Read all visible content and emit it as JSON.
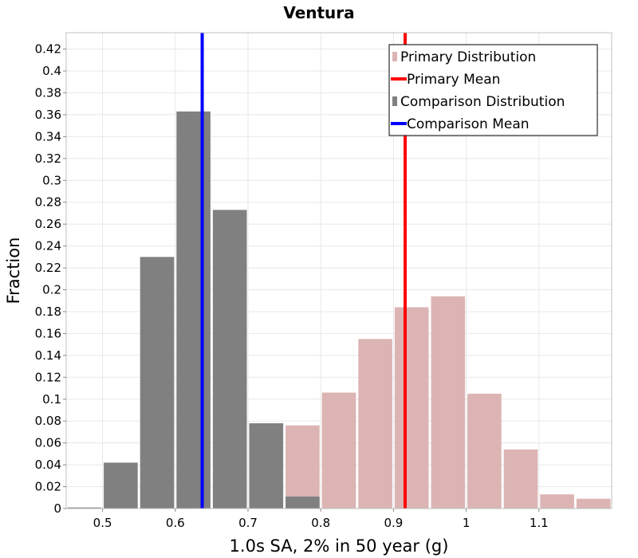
{
  "chart_data": {
    "type": "bar",
    "title": "Ventura",
    "xlabel": "1.0s SA, 2% in 50 year (g)",
    "ylabel": "Fraction",
    "xlim": [
      0.45,
      1.2
    ],
    "ylim": [
      0,
      0.435
    ],
    "x_ticks": [
      "0.5",
      "0.6",
      "0.7",
      "0.8",
      "0.9",
      "1",
      "1.1"
    ],
    "y_ticks": [
      "0",
      "0.02",
      "0.04",
      "0.06",
      "0.08",
      "0.1",
      "0.12",
      "0.14",
      "0.16",
      "0.18",
      "0.2",
      "0.22",
      "0.24",
      "0.26",
      "0.28",
      "0.3",
      "0.32",
      "0.34",
      "0.36",
      "0.38",
      "0.4",
      "0.42"
    ],
    "grid": true,
    "legend_position": "top-right",
    "bin_width": 0.05,
    "series": [
      {
        "name": "Primary Distribution",
        "kind": "bar",
        "color": "#dcb4b4",
        "bins": [
          {
            "x": 0.775,
            "y": 0.076
          },
          {
            "x": 0.825,
            "y": 0.106
          },
          {
            "x": 0.875,
            "y": 0.155
          },
          {
            "x": 0.925,
            "y": 0.184
          },
          {
            "x": 0.975,
            "y": 0.194
          },
          {
            "x": 1.025,
            "y": 0.105
          },
          {
            "x": 1.075,
            "y": 0.054
          },
          {
            "x": 1.125,
            "y": 0.013
          },
          {
            "x": 1.175,
            "y": 0.009
          }
        ]
      },
      {
        "name": "Primary Mean",
        "kind": "vline",
        "color": "#ff0000",
        "x": 0.916
      },
      {
        "name": "Comparison Distribution",
        "kind": "bar",
        "color": "#808080",
        "bins": [
          {
            "x": 0.475,
            "y": 0.001
          },
          {
            "x": 0.525,
            "y": 0.042
          },
          {
            "x": 0.575,
            "y": 0.23
          },
          {
            "x": 0.625,
            "y": 0.363
          },
          {
            "x": 0.675,
            "y": 0.273
          },
          {
            "x": 0.725,
            "y": 0.078
          },
          {
            "x": 0.775,
            "y": 0.011
          }
        ]
      },
      {
        "name": "Comparison Mean",
        "kind": "vline",
        "color": "#0000ff",
        "x": 0.637
      }
    ]
  }
}
